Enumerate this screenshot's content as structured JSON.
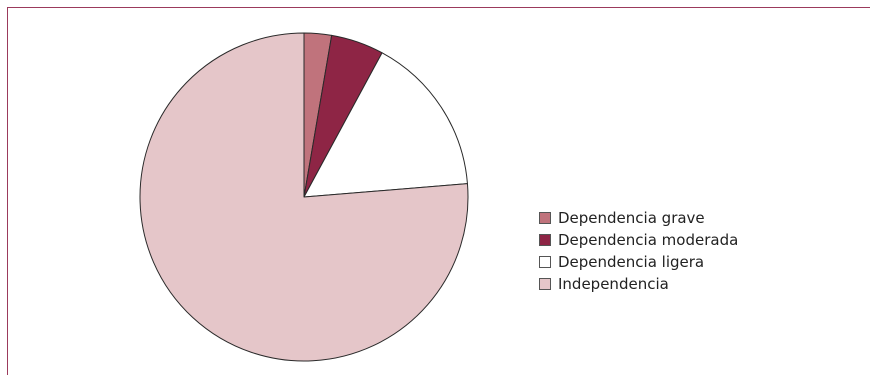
{
  "chart_data": {
    "type": "pie",
    "title": "",
    "start_angle_deg": 0,
    "direction": "clockwise",
    "legend_position": "right",
    "slices": [
      {
        "label": "Dependencia grave",
        "value": 2.7,
        "color": "#c0737c"
      },
      {
        "label": "Dependencia moderada",
        "value": 5.2,
        "color": "#8e2545"
      },
      {
        "label": "Dependencia ligera",
        "value": 15.8,
        "color": "#ffffff"
      },
      {
        "label": "Independencia",
        "value": 76.3,
        "color": "#e5c6c9"
      }
    ]
  }
}
